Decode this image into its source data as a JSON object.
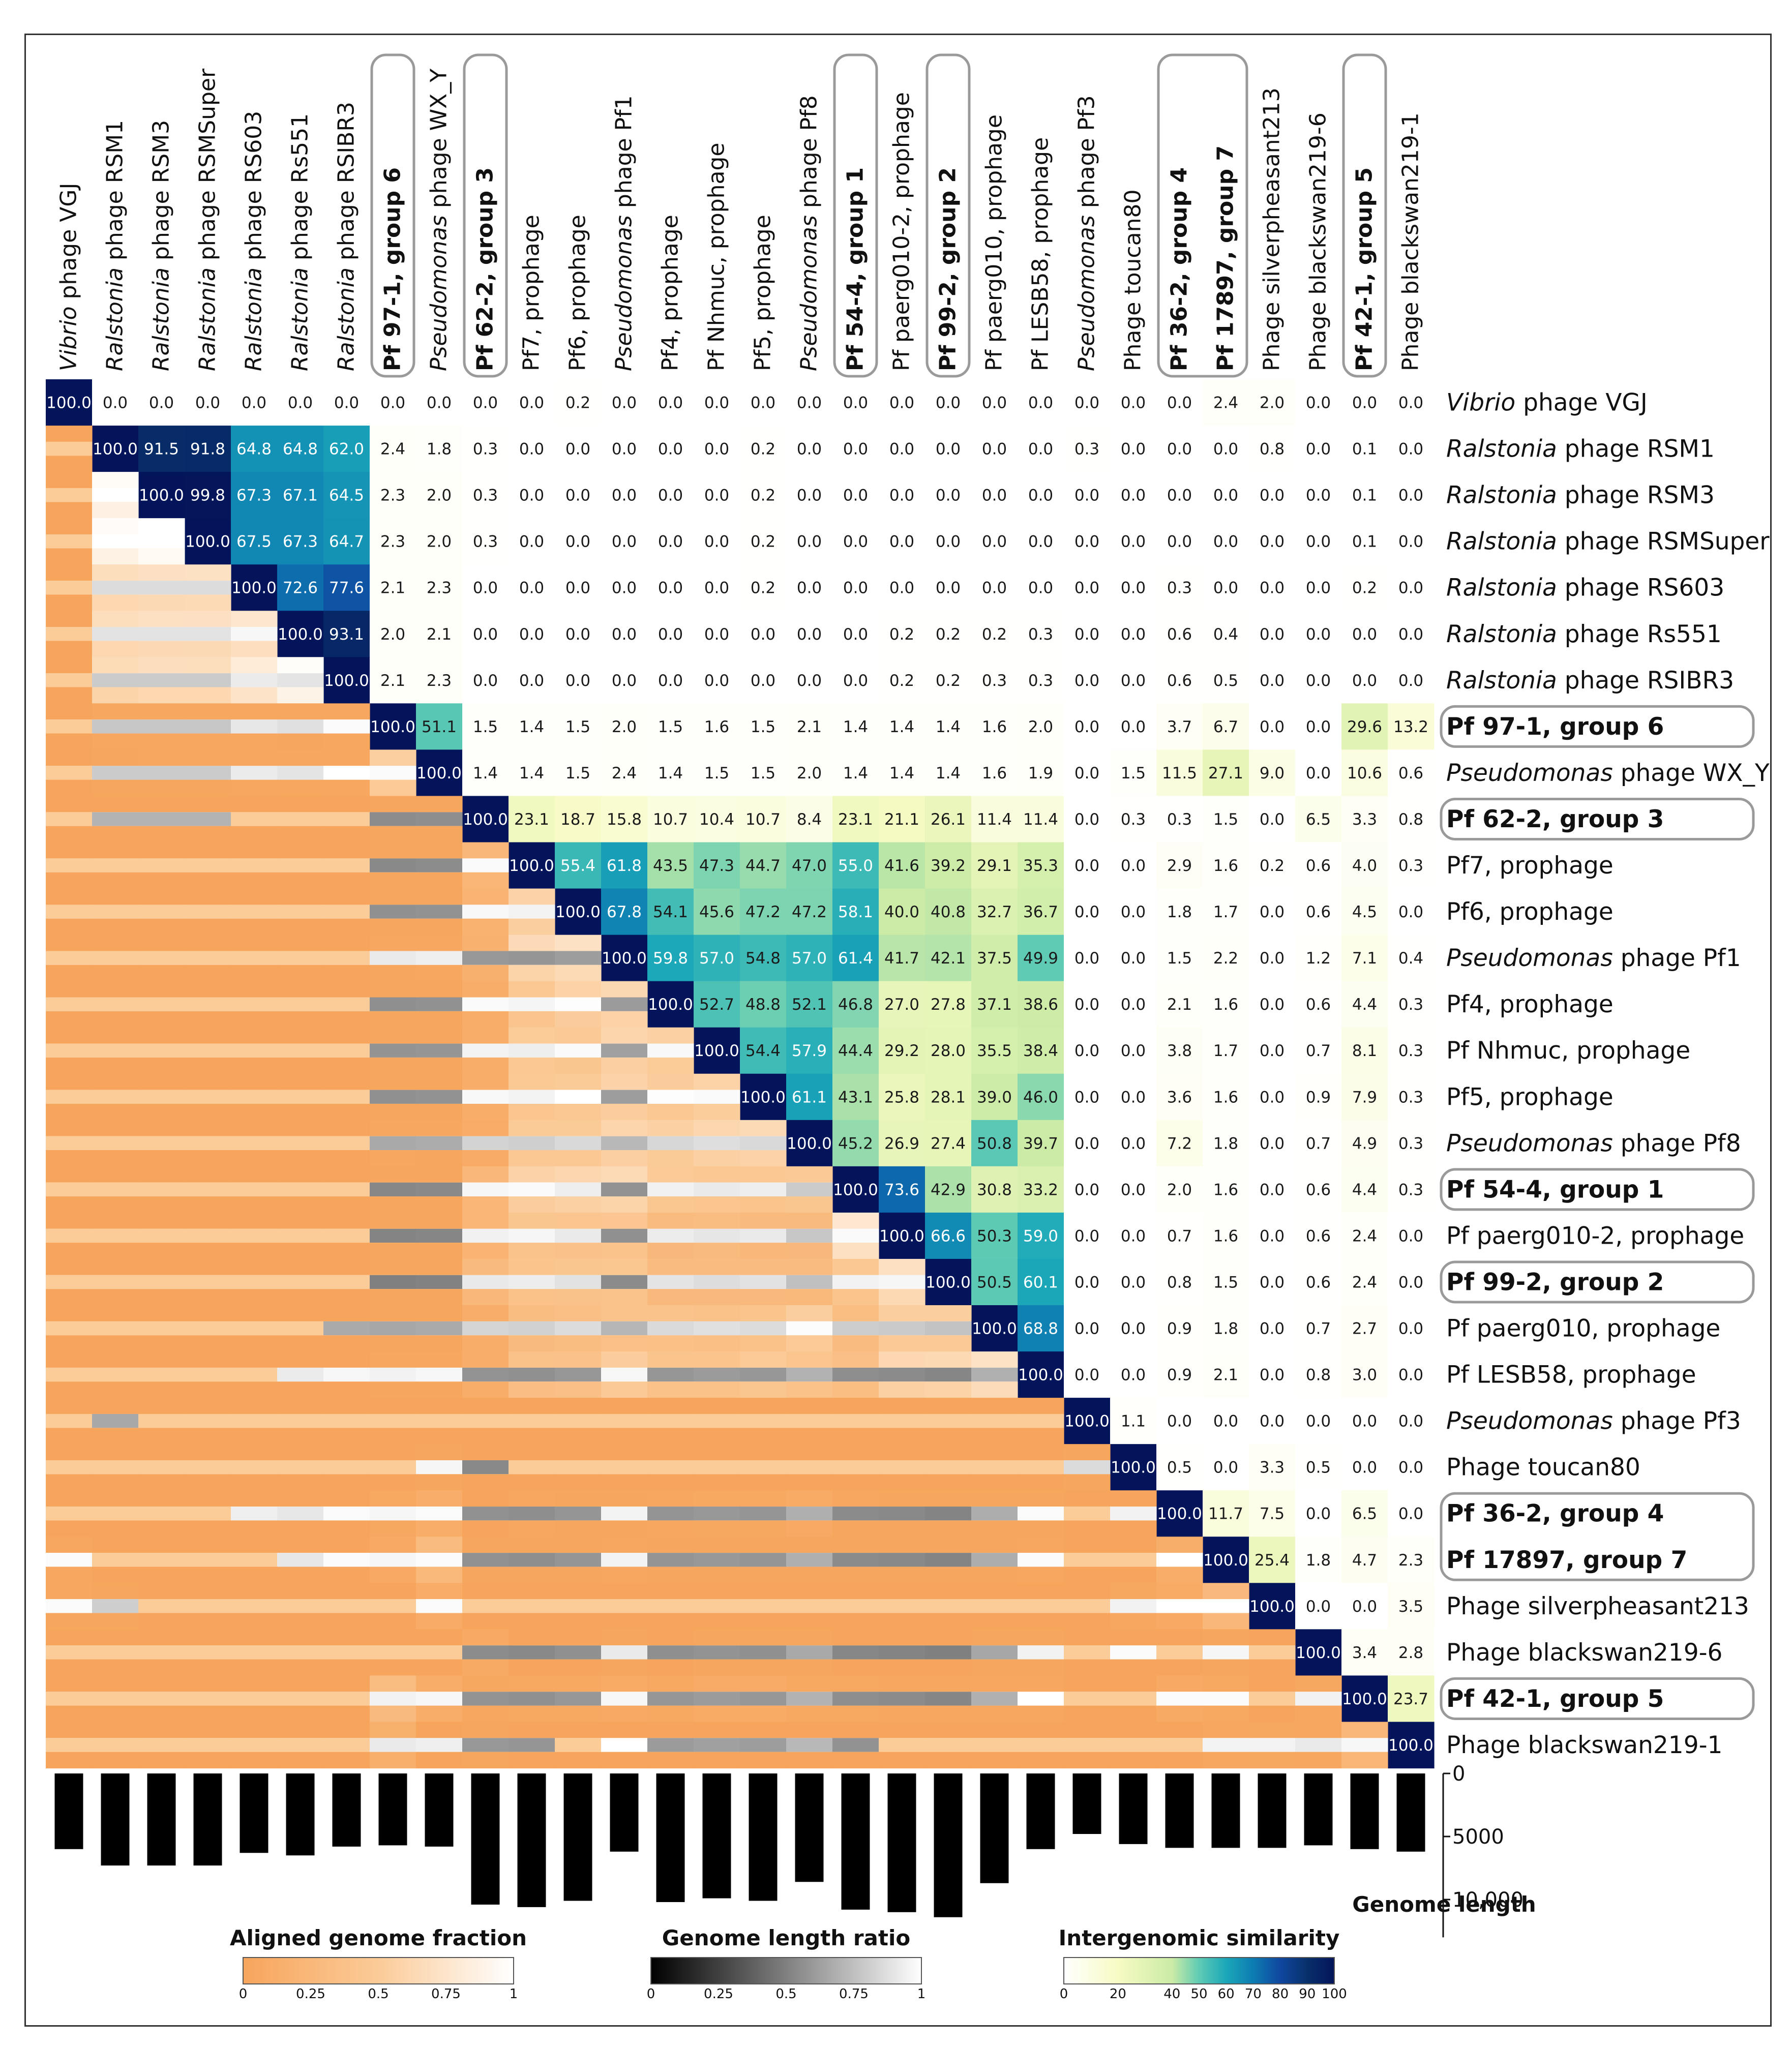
{
  "chart_data": {
    "type": "heatmap",
    "title": "",
    "labels": [
      {
        "prefix": "Vibrio",
        "rest": " phage VGJ",
        "bold": false
      },
      {
        "prefix": "Ralstonia",
        "rest": " phage RSM1",
        "bold": false
      },
      {
        "prefix": "Ralstonia",
        "rest": " phage RSM3",
        "bold": false
      },
      {
        "prefix": "Ralstonia",
        "rest": " phage RSMSuper",
        "bold": false
      },
      {
        "prefix": "Ralstonia",
        "rest": " phage RS603",
        "bold": false
      },
      {
        "prefix": "Ralstonia",
        "rest": " phage Rs551",
        "bold": false
      },
      {
        "prefix": "Ralstonia",
        "rest": " phage RSIBR3",
        "bold": false
      },
      {
        "prefix": "",
        "rest": "Pf 97-1, group 6",
        "bold": true
      },
      {
        "prefix": "Pseudomonas",
        "rest": " phage WX_Y",
        "bold": false
      },
      {
        "prefix": "",
        "rest": "Pf 62-2, group 3",
        "bold": true
      },
      {
        "prefix": "",
        "rest": "Pf7, prophage",
        "bold": false
      },
      {
        "prefix": "",
        "rest": "Pf6, prophage",
        "bold": false
      },
      {
        "prefix": "Pseudomonas",
        "rest": " phage Pf1",
        "bold": false
      },
      {
        "prefix": "",
        "rest": "Pf4, prophage",
        "bold": false
      },
      {
        "prefix": "",
        "rest": "Pf Nhmuc, prophage",
        "bold": false
      },
      {
        "prefix": "",
        "rest": "Pf5, prophage",
        "bold": false
      },
      {
        "prefix": "Pseudomonas",
        "rest": " phage Pf8",
        "bold": false
      },
      {
        "prefix": "",
        "rest": "Pf 54-4, group 1",
        "bold": true
      },
      {
        "prefix": "",
        "rest": "Pf paerg010-2, prophage",
        "bold": false
      },
      {
        "prefix": "",
        "rest": "Pf 99-2, group 2",
        "bold": true
      },
      {
        "prefix": "",
        "rest": "Pf paerg010, prophage",
        "bold": false
      },
      {
        "prefix": "",
        "rest": "Pf LESB58, prophage",
        "bold": false
      },
      {
        "prefix": "Pseudomonas",
        "rest": " phage Pf3",
        "bold": false
      },
      {
        "prefix": "",
        "rest": "Phage toucan80",
        "bold": false
      },
      {
        "prefix": "",
        "rest": "Pf 36-2, group 4",
        "bold": true
      },
      {
        "prefix": "",
        "rest": "Pf 17897, group 7",
        "bold": true
      },
      {
        "prefix": "",
        "rest": "Phage silverpheasant213",
        "bold": false
      },
      {
        "prefix": "",
        "rest": "Phage blackswan219-6",
        "bold": false
      },
      {
        "prefix": "",
        "rest": "Pf 42-1, group 5",
        "bold": true
      },
      {
        "prefix": "",
        "rest": "Phage blackswan219-1",
        "bold": false
      }
    ],
    "upper": [
      [
        100.0,
        0.0,
        0.0,
        0.0,
        0.0,
        0.0,
        0.0,
        0.0,
        0.0,
        0.0,
        0.0,
        0.2,
        0.0,
        0.0,
        0.0,
        0.0,
        0.0,
        0.0,
        0.0,
        0.0,
        0.0,
        0.0,
        0.0,
        0.0,
        0.0,
        2.4,
        2.0,
        0.0,
        0.0,
        0.0
      ],
      [
        null,
        100.0,
        91.5,
        91.8,
        64.8,
        64.8,
        62.0,
        2.4,
        1.8,
        0.3,
        0.0,
        0.0,
        0.0,
        0.0,
        0.0,
        0.2,
        0.0,
        0.0,
        0.0,
        0.0,
        0.0,
        0.0,
        0.3,
        0.0,
        0.0,
        0.0,
        0.8,
        0.0,
        0.1,
        0.0
      ],
      [
        null,
        null,
        100.0,
        99.8,
        67.3,
        67.1,
        64.5,
        2.3,
        2.0,
        0.3,
        0.0,
        0.0,
        0.0,
        0.0,
        0.0,
        0.2,
        0.0,
        0.0,
        0.0,
        0.0,
        0.0,
        0.0,
        0.0,
        0.0,
        0.0,
        0.0,
        0.0,
        0.0,
        0.1,
        0.0
      ],
      [
        null,
        null,
        null,
        100.0,
        67.5,
        67.3,
        64.7,
        2.3,
        2.0,
        0.3,
        0.0,
        0.0,
        0.0,
        0.0,
        0.0,
        0.2,
        0.0,
        0.0,
        0.0,
        0.0,
        0.0,
        0.0,
        0.0,
        0.0,
        0.0,
        0.0,
        0.0,
        0.0,
        0.1,
        0.0
      ],
      [
        null,
        null,
        null,
        null,
        100.0,
        72.6,
        77.6,
        2.1,
        2.3,
        0.0,
        0.0,
        0.0,
        0.0,
        0.0,
        0.0,
        0.2,
        0.0,
        0.0,
        0.0,
        0.0,
        0.0,
        0.0,
        0.0,
        0.0,
        0.3,
        0.0,
        0.0,
        0.0,
        0.2,
        0.0
      ],
      [
        null,
        null,
        null,
        null,
        null,
        100.0,
        93.1,
        2.0,
        2.1,
        0.0,
        0.0,
        0.0,
        0.0,
        0.0,
        0.0,
        0.0,
        0.0,
        0.0,
        0.2,
        0.2,
        0.2,
        0.3,
        0.0,
        0.0,
        0.6,
        0.4,
        0.0,
        0.0,
        0.0,
        0.0
      ],
      [
        null,
        null,
        null,
        null,
        null,
        null,
        100.0,
        2.1,
        2.3,
        0.0,
        0.0,
        0.0,
        0.0,
        0.0,
        0.0,
        0.0,
        0.0,
        0.0,
        0.2,
        0.2,
        0.3,
        0.3,
        0.0,
        0.0,
        0.6,
        0.5,
        0.0,
        0.0,
        0.0,
        0.0
      ],
      [
        null,
        null,
        null,
        null,
        null,
        null,
        null,
        100.0,
        51.1,
        1.5,
        1.4,
        1.5,
        2.0,
        1.5,
        1.6,
        1.5,
        2.1,
        1.4,
        1.4,
        1.4,
        1.6,
        2.0,
        0.0,
        0.0,
        3.7,
        6.7,
        0.0,
        0.0,
        29.6,
        13.2
      ],
      [
        null,
        null,
        null,
        null,
        null,
        null,
        null,
        null,
        100.0,
        1.4,
        1.4,
        1.5,
        2.4,
        1.4,
        1.5,
        1.5,
        2.0,
        1.4,
        1.4,
        1.4,
        1.6,
        1.9,
        0.0,
        1.5,
        11.5,
        27.1,
        9.0,
        0.0,
        10.6,
        0.6
      ],
      [
        null,
        null,
        null,
        null,
        null,
        null,
        null,
        null,
        null,
        100.0,
        23.1,
        18.7,
        15.8,
        10.7,
        10.4,
        10.7,
        8.4,
        23.1,
        21.1,
        26.1,
        11.4,
        11.4,
        0.0,
        0.3,
        0.3,
        1.5,
        0.0,
        6.5,
        3.3,
        0.8
      ],
      [
        null,
        null,
        null,
        null,
        null,
        null,
        null,
        null,
        null,
        null,
        100.0,
        55.4,
        61.8,
        43.5,
        47.3,
        44.7,
        47.0,
        55.0,
        41.6,
        39.2,
        29.1,
        35.3,
        0.0,
        0.0,
        2.9,
        1.6,
        0.2,
        0.6,
        4.0,
        0.3
      ],
      [
        null,
        null,
        null,
        null,
        null,
        null,
        null,
        null,
        null,
        null,
        null,
        100.0,
        67.8,
        54.1,
        45.6,
        47.2,
        47.2,
        58.1,
        40.0,
        40.8,
        32.7,
        36.7,
        0.0,
        0.0,
        1.8,
        1.7,
        0.0,
        0.6,
        4.5,
        0.0
      ],
      [
        null,
        null,
        null,
        null,
        null,
        null,
        null,
        null,
        null,
        null,
        null,
        null,
        100.0,
        59.8,
        57.0,
        54.8,
        57.0,
        61.4,
        41.7,
        42.1,
        37.5,
        49.9,
        0.0,
        0.0,
        1.5,
        2.2,
        0.0,
        1.2,
        7.1,
        0.4
      ],
      [
        null,
        null,
        null,
        null,
        null,
        null,
        null,
        null,
        null,
        null,
        null,
        null,
        null,
        100.0,
        52.7,
        48.8,
        52.1,
        46.8,
        27.0,
        27.8,
        37.1,
        38.6,
        0.0,
        0.0,
        2.1,
        1.6,
        0.0,
        0.6,
        4.4,
        0.3
      ],
      [
        null,
        null,
        null,
        null,
        null,
        null,
        null,
        null,
        null,
        null,
        null,
        null,
        null,
        null,
        100.0,
        54.4,
        57.9,
        44.4,
        29.2,
        28.0,
        35.5,
        38.4,
        0.0,
        0.0,
        3.8,
        1.7,
        0.0,
        0.7,
        8.1,
        0.3
      ],
      [
        null,
        null,
        null,
        null,
        null,
        null,
        null,
        null,
        null,
        null,
        null,
        null,
        null,
        null,
        null,
        100.0,
        61.1,
        43.1,
        25.8,
        28.1,
        39.0,
        46.0,
        0.0,
        0.0,
        3.6,
        1.6,
        0.0,
        0.9,
        7.9,
        0.3
      ],
      [
        null,
        null,
        null,
        null,
        null,
        null,
        null,
        null,
        null,
        null,
        null,
        null,
        null,
        null,
        null,
        null,
        100.0,
        45.2,
        26.9,
        27.4,
        50.8,
        39.7,
        0.0,
        0.0,
        7.2,
        1.8,
        0.0,
        0.7,
        4.9,
        0.3
      ],
      [
        null,
        null,
        null,
        null,
        null,
        null,
        null,
        null,
        null,
        null,
        null,
        null,
        null,
        null,
        null,
        null,
        null,
        100.0,
        73.6,
        42.9,
        30.8,
        33.2,
        0.0,
        0.0,
        2.0,
        1.6,
        0.0,
        0.6,
        4.4,
        0.3
      ],
      [
        null,
        null,
        null,
        null,
        null,
        null,
        null,
        null,
        null,
        null,
        null,
        null,
        null,
        null,
        null,
        null,
        null,
        null,
        100.0,
        66.6,
        50.3,
        59.0,
        0.0,
        0.0,
        0.7,
        1.6,
        0.0,
        0.6,
        2.4,
        0.0
      ],
      [
        null,
        null,
        null,
        null,
        null,
        null,
        null,
        null,
        null,
        null,
        null,
        null,
        null,
        null,
        null,
        null,
        null,
        null,
        null,
        100.0,
        50.5,
        60.1,
        0.0,
        0.0,
        0.8,
        1.5,
        0.0,
        0.6,
        2.4,
        0.0
      ],
      [
        null,
        null,
        null,
        null,
        null,
        null,
        null,
        null,
        null,
        null,
        null,
        null,
        null,
        null,
        null,
        null,
        null,
        null,
        null,
        null,
        100.0,
        68.8,
        0.0,
        0.0,
        0.9,
        1.8,
        0.0,
        0.7,
        2.7,
        0.0
      ],
      [
        null,
        null,
        null,
        null,
        null,
        null,
        null,
        null,
        null,
        null,
        null,
        null,
        null,
        null,
        null,
        null,
        null,
        null,
        null,
        null,
        null,
        100.0,
        0.0,
        0.0,
        0.9,
        2.1,
        0.0,
        0.8,
        3.0,
        0.0
      ],
      [
        null,
        null,
        null,
        null,
        null,
        null,
        null,
        null,
        null,
        null,
        null,
        null,
        null,
        null,
        null,
        null,
        null,
        null,
        null,
        null,
        null,
        null,
        100.0,
        1.1,
        0.0,
        0.0,
        0.0,
        0.0,
        0.0,
        0.0
      ],
      [
        null,
        null,
        null,
        null,
        null,
        null,
        null,
        null,
        null,
        null,
        null,
        null,
        null,
        null,
        null,
        null,
        null,
        null,
        null,
        null,
        null,
        null,
        null,
        100.0,
        0.5,
        0.0,
        3.3,
        0.5,
        0.0,
        0.0
      ],
      [
        null,
        null,
        null,
        null,
        null,
        null,
        null,
        null,
        null,
        null,
        null,
        null,
        null,
        null,
        null,
        null,
        null,
        null,
        null,
        null,
        null,
        null,
        null,
        null,
        100.0,
        11.7,
        7.5,
        0.0,
        6.5,
        0.0
      ],
      [
        null,
        null,
        null,
        null,
        null,
        null,
        null,
        null,
        null,
        null,
        null,
        null,
        null,
        null,
        null,
        null,
        null,
        null,
        null,
        null,
        null,
        null,
        null,
        null,
        null,
        100.0,
        25.4,
        1.8,
        4.7,
        2.3
      ],
      [
        null,
        null,
        null,
        null,
        null,
        null,
        null,
        null,
        null,
        null,
        null,
        null,
        null,
        null,
        null,
        null,
        null,
        null,
        null,
        null,
        null,
        null,
        null,
        null,
        null,
        null,
        100.0,
        0.0,
        0.0,
        3.5
      ],
      [
        null,
        null,
        null,
        null,
        null,
        null,
        null,
        null,
        null,
        null,
        null,
        null,
        null,
        null,
        null,
        null,
        null,
        null,
        null,
        null,
        null,
        null,
        null,
        null,
        null,
        null,
        null,
        100.0,
        3.4,
        2.8
      ],
      [
        null,
        null,
        null,
        null,
        null,
        null,
        null,
        null,
        null,
        null,
        null,
        null,
        null,
        null,
        null,
        null,
        null,
        null,
        null,
        null,
        null,
        null,
        null,
        null,
        null,
        null,
        null,
        null,
        100.0,
        23.7
      ],
      [
        null,
        null,
        null,
        null,
        null,
        null,
        null,
        null,
        null,
        null,
        null,
        null,
        null,
        null,
        null,
        null,
        null,
        null,
        null,
        null,
        null,
        null,
        null,
        null,
        null,
        null,
        null,
        null,
        null,
        100.0
      ]
    ],
    "genome_lengths": [
      6000,
      7300,
      7300,
      7300,
      6300,
      6500,
      5800,
      5700,
      5800,
      10400,
      10600,
      10100,
      6200,
      10200,
      9900,
      10100,
      8600,
      10800,
      11000,
      11400,
      8700,
      6000,
      4800,
      5600,
      5900,
      5900,
      5900,
      5700,
      6000,
      6200
    ],
    "genome_axis": {
      "ticks": [
        0,
        5000,
        10000
      ],
      "tick_labels": [
        "0",
        "5000",
        "10,000"
      ],
      "label": "Genome length",
      "range": [
        0,
        13000
      ]
    },
    "legends": [
      {
        "title": "Aligned genome fraction",
        "ticks": [
          "0",
          "0.25",
          "0.5",
          "0.75",
          "1"
        ],
        "colors": [
          "#f7a55c",
          "#fbcb98",
          "#ffffff"
        ]
      },
      {
        "title": "Genome length ratio",
        "ticks": [
          "0",
          "0.25",
          "0.5",
          "0.75",
          "1"
        ],
        "colors": [
          "#000000",
          "#808080",
          "#ffffff"
        ]
      },
      {
        "title": "Intergenomic similarity",
        "ticks": [
          "0",
          "20",
          "40",
          "50",
          "60",
          "70",
          "80",
          "90",
          "100"
        ],
        "tick_values": [
          0,
          20,
          40,
          50,
          60,
          70,
          80,
          90,
          100
        ],
        "colors": [
          "#ffffff",
          "#f7fbc4",
          "#cbeba6",
          "#5fcbb4",
          "#1ba7b8",
          "#0d7cb2",
          "#1047a0",
          "#08306b",
          "#04145a"
        ]
      }
    ],
    "colors": {
      "orange": "#f7a55c",
      "light_orange": "#fbcb98",
      "navy": "#04145a",
      "box": "#9a9a9a"
    }
  }
}
